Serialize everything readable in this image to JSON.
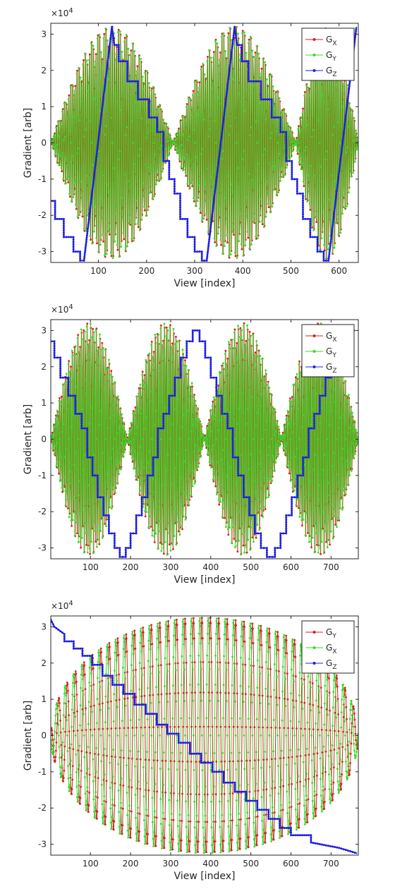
{
  "chart_data": [
    {
      "type": "line",
      "ylabel": "Gradient [arb]",
      "xlabel": "View [index]",
      "exponent_base": "×10",
      "exponent_power": "4",
      "xlim": [
        1,
        640
      ],
      "ylim": [
        -33000,
        33000
      ],
      "xticks": [
        100,
        200,
        300,
        400,
        500,
        600
      ],
      "yticks": [
        -30000,
        -20000,
        -10000,
        0,
        10000,
        20000,
        30000
      ],
      "ytick_labels": [
        "-3",
        "-2",
        "-1",
        "0",
        "1",
        "2",
        "3"
      ],
      "legend_position": "top-right",
      "series": [
        {
          "main": "G",
          "sub": "X",
          "color": "#d62020",
          "osc": {
            "n": 640,
            "period": 4.3,
            "phase": 0.0,
            "envelope": "abs_cos",
            "env_periods": [
              1,
              255,
              510,
              640
            ],
            "amp": 32000
          }
        },
        {
          "main": "G",
          "sub": "Y",
          "color": "#3dd62a",
          "osc": {
            "n": 640,
            "period": 4.3,
            "phase": 1.57,
            "envelope": "abs_cos",
            "env_periods": [
              1,
              255,
              510,
              640
            ],
            "amp": 32000
          }
        },
        {
          "main": "G",
          "sub": "Z",
          "color": "#1f1fe0",
          "points": [
            [
              1,
              -16000
            ],
            [
              10,
              -16000
            ],
            [
              10,
              -21000
            ],
            [
              28,
              -21000
            ],
            [
              28,
              -26000
            ],
            [
              48,
              -26000
            ],
            [
              48,
              -30000
            ],
            [
              62,
              -30000
            ],
            [
              62,
              -32500
            ],
            [
              70,
              -32500
            ],
            [
              128,
              32000
            ],
            [
              133,
              27000
            ],
            [
              142,
              27000
            ],
            [
              142,
              22500
            ],
            [
              160,
              22500
            ],
            [
              160,
              17000
            ],
            [
              182,
              17000
            ],
            [
              182,
              12000
            ],
            [
              205,
              12000
            ],
            [
              205,
              7000
            ],
            [
              222,
              7000
            ],
            [
              222,
              3000
            ],
            [
              235,
              3000
            ],
            [
              235,
              -5000
            ],
            [
              247,
              -5000
            ],
            [
              247,
              -10000
            ],
            [
              258,
              -10000
            ],
            [
              258,
              -14000
            ],
            [
              270,
              -14000
            ],
            [
              270,
              -21000
            ],
            [
              285,
              -21000
            ],
            [
              285,
              -26000
            ],
            [
              300,
              -26000
            ],
            [
              300,
              -30000
            ],
            [
              315,
              -30000
            ],
            [
              315,
              -32500
            ],
            [
              325,
              -32500
            ],
            [
              383,
              32000
            ],
            [
              388,
              27000
            ],
            [
              398,
              27000
            ],
            [
              398,
              22500
            ],
            [
              412,
              22500
            ],
            [
              412,
              17000
            ],
            [
              438,
              17000
            ],
            [
              438,
              12000
            ],
            [
              460,
              12000
            ],
            [
              460,
              7000
            ],
            [
              478,
              7000
            ],
            [
              478,
              3000
            ],
            [
              490,
              3000
            ],
            [
              490,
              -5000
            ],
            [
              502,
              -5000
            ],
            [
              502,
              -10000
            ],
            [
              513,
              -10000
            ],
            [
              513,
              -14000
            ],
            [
              525,
              -14000
            ],
            [
              525,
              -21000
            ],
            [
              540,
              -21000
            ],
            [
              540,
              -26000
            ],
            [
              555,
              -26000
            ],
            [
              555,
              -30000
            ],
            [
              568,
              -30000
            ],
            [
              568,
              -32500
            ],
            [
              578,
              -32500
            ],
            [
              636,
              32000
            ]
          ]
        }
      ]
    },
    {
      "type": "line",
      "ylabel": "Gradient [arb]",
      "xlabel": "View [index]",
      "exponent_base": "×10",
      "exponent_power": "4",
      "xlim": [
        1,
        768
      ],
      "ylim": [
        -33000,
        33000
      ],
      "xticks": [
        100,
        200,
        300,
        400,
        500,
        600,
        700
      ],
      "yticks": [
        -30000,
        -20000,
        -10000,
        0,
        10000,
        20000,
        30000
      ],
      "ytick_labels": [
        "-3",
        "-2",
        "-1",
        "0",
        "1",
        "2",
        "3"
      ],
      "legend_position": "top-right",
      "series": [
        {
          "main": "G",
          "sub": "X",
          "color": "#d62020",
          "osc": {
            "n": 768,
            "period": 4.6,
            "phase": 0.0,
            "envelope": "abs_cos",
            "env_periods": [
              1,
              192,
              384,
              576,
              768
            ],
            "amp": 32000
          }
        },
        {
          "main": "G",
          "sub": "Y",
          "color": "#3dd62a",
          "osc": {
            "n": 768,
            "period": 4.6,
            "phase": 1.57,
            "envelope": "abs_cos",
            "env_periods": [
              1,
              192,
              384,
              576,
              768
            ],
            "amp": 32000
          }
        },
        {
          "main": "G",
          "sub": "Z",
          "color": "#1f1fe0",
          "points": [
            [
              1,
              27000
            ],
            [
              10,
              27000
            ],
            [
              10,
              22500
            ],
            [
              25,
              22500
            ],
            [
              25,
              17000
            ],
            [
              45,
              17000
            ],
            [
              45,
              12000
            ],
            [
              62,
              12000
            ],
            [
              62,
              7000
            ],
            [
              78,
              7000
            ],
            [
              78,
              3000
            ],
            [
              92,
              3000
            ],
            [
              92,
              -5000
            ],
            [
              105,
              -5000
            ],
            [
              105,
              -10000
            ],
            [
              118,
              -10000
            ],
            [
              118,
              -16000
            ],
            [
              132,
              -16000
            ],
            [
              132,
              -21000
            ],
            [
              146,
              -21000
            ],
            [
              146,
              -26000
            ],
            [
              160,
              -26000
            ],
            [
              160,
              -30000
            ],
            [
              173,
              -30000
            ],
            [
              173,
              -32500
            ],
            [
              188,
              -32500
            ],
            [
              188,
              -30000
            ],
            [
              200,
              -30000
            ],
            [
              200,
              -26000
            ],
            [
              214,
              -26000
            ],
            [
              214,
              -21000
            ],
            [
              228,
              -21000
            ],
            [
              228,
              -16000
            ],
            [
              242,
              -16000
            ],
            [
              242,
              -10000
            ],
            [
              256,
              -10000
            ],
            [
              256,
              -5000
            ],
            [
              268,
              -5000
            ],
            [
              268,
              3000
            ],
            [
              282,
              3000
            ],
            [
              282,
              7000
            ],
            [
              296,
              7000
            ],
            [
              296,
              12000
            ],
            [
              310,
              12000
            ],
            [
              310,
              17000
            ],
            [
              325,
              17000
            ],
            [
              325,
              22500
            ],
            [
              340,
              22500
            ],
            [
              340,
              27000
            ],
            [
              355,
              27000
            ],
            [
              355,
              30000
            ],
            [
              372,
              30000
            ],
            [
              372,
              27000
            ],
            [
              386,
              27000
            ],
            [
              386,
              22500
            ],
            [
              400,
              22500
            ],
            [
              400,
              17000
            ],
            [
              414,
              17000
            ],
            [
              414,
              12000
            ],
            [
              428,
              12000
            ],
            [
              428,
              7000
            ],
            [
              442,
              7000
            ],
            [
              442,
              3000
            ],
            [
              455,
              3000
            ],
            [
              455,
              -5000
            ],
            [
              468,
              -5000
            ],
            [
              468,
              -10000
            ],
            [
              482,
              -10000
            ],
            [
              482,
              -16000
            ],
            [
              496,
              -16000
            ],
            [
              496,
              -21000
            ],
            [
              510,
              -21000
            ],
            [
              510,
              -26000
            ],
            [
              525,
              -26000
            ],
            [
              525,
              -30000
            ],
            [
              540,
              -30000
            ],
            [
              540,
              -32500
            ],
            [
              560,
              -32500
            ],
            [
              560,
              -30000
            ],
            [
              574,
              -30000
            ],
            [
              574,
              -26000
            ],
            [
              588,
              -26000
            ],
            [
              588,
              -21000
            ],
            [
              602,
              -21000
            ],
            [
              602,
              -16000
            ],
            [
              616,
              -16000
            ],
            [
              616,
              -10000
            ],
            [
              630,
              -10000
            ],
            [
              630,
              -5000
            ],
            [
              644,
              -5000
            ],
            [
              644,
              3000
            ],
            [
              658,
              3000
            ],
            [
              658,
              7000
            ],
            [
              672,
              7000
            ],
            [
              672,
              12000
            ],
            [
              686,
              12000
            ],
            [
              686,
              17000
            ],
            [
              700,
              17000
            ],
            [
              700,
              22500
            ],
            [
              716,
              22500
            ],
            [
              716,
              27000
            ],
            [
              730,
              27000
            ],
            [
              730,
              30000
            ],
            [
              760,
              30000
            ]
          ]
        }
      ]
    },
    {
      "type": "line",
      "ylabel": "Gradient [arb]",
      "xlabel": "View [index]",
      "exponent_base": "×10",
      "exponent_power": "4",
      "xlim": [
        1,
        768
      ],
      "ylim": [
        -33000,
        33000
      ],
      "xticks": [
        100,
        200,
        300,
        400,
        500,
        600,
        700
      ],
      "yticks": [
        -30000,
        -20000,
        -10000,
        0,
        10000,
        20000,
        30000
      ],
      "ytick_labels": [
        "-3",
        "-2",
        "-1",
        "0",
        "1",
        "2",
        "3"
      ],
      "legend_position": "top-right",
      "series": [
        {
          "main": "G",
          "sub": "Y",
          "color": "#d62020",
          "osc": {
            "n": 768,
            "period": 21,
            "phase": 0.0,
            "envelope": "sqrt_arc",
            "env_periods": [
              1,
              768
            ],
            "amp": 32500
          }
        },
        {
          "main": "G",
          "sub": "X",
          "color": "#3dd62a",
          "osc": {
            "n": 768,
            "period": 21,
            "phase": 1.57,
            "envelope": "sqrt_arc",
            "env_periods": [
              1,
              768
            ],
            "amp": 32500
          }
        },
        {
          "main": "G",
          "sub": "Z",
          "color": "#1f1fe0",
          "points": [
            [
              1,
              32000
            ],
            [
              10,
              30000
            ],
            [
              35,
              28000
            ],
            [
              35,
              26000
            ],
            [
              58,
              26000
            ],
            [
              58,
              24000
            ],
            [
              80,
              24000
            ],
            [
              80,
              22000
            ],
            [
              104,
              22000
            ],
            [
              104,
              19500
            ],
            [
              130,
              19500
            ],
            [
              130,
              16500
            ],
            [
              155,
              16500
            ],
            [
              155,
              14000
            ],
            [
              182,
              14000
            ],
            [
              182,
              11500
            ],
            [
              210,
              11500
            ],
            [
              210,
              8500
            ],
            [
              238,
              8500
            ],
            [
              238,
              6000
            ],
            [
              265,
              6000
            ],
            [
              265,
              3000
            ],
            [
              292,
              3000
            ],
            [
              292,
              500
            ],
            [
              320,
              500
            ],
            [
              320,
              -2000
            ],
            [
              348,
              -2000
            ],
            [
              348,
              -5000
            ],
            [
              376,
              -5000
            ],
            [
              376,
              -7500
            ],
            [
              404,
              -7500
            ],
            [
              404,
              -10000
            ],
            [
              432,
              -10000
            ],
            [
              432,
              -13000
            ],
            [
              460,
              -13000
            ],
            [
              460,
              -15500
            ],
            [
              488,
              -15500
            ],
            [
              488,
              -18000
            ],
            [
              516,
              -18000
            ],
            [
              516,
              -20500
            ],
            [
              544,
              -20500
            ],
            [
              544,
              -23000
            ],
            [
              572,
              -23000
            ],
            [
              572,
              -25500
            ],
            [
              600,
              -25500
            ],
            [
              600,
              -27500
            ],
            [
              650,
              -27500
            ],
            [
              650,
              -29500
            ],
            [
              720,
              -31000
            ],
            [
              765,
              -32500
            ]
          ]
        }
      ]
    }
  ]
}
